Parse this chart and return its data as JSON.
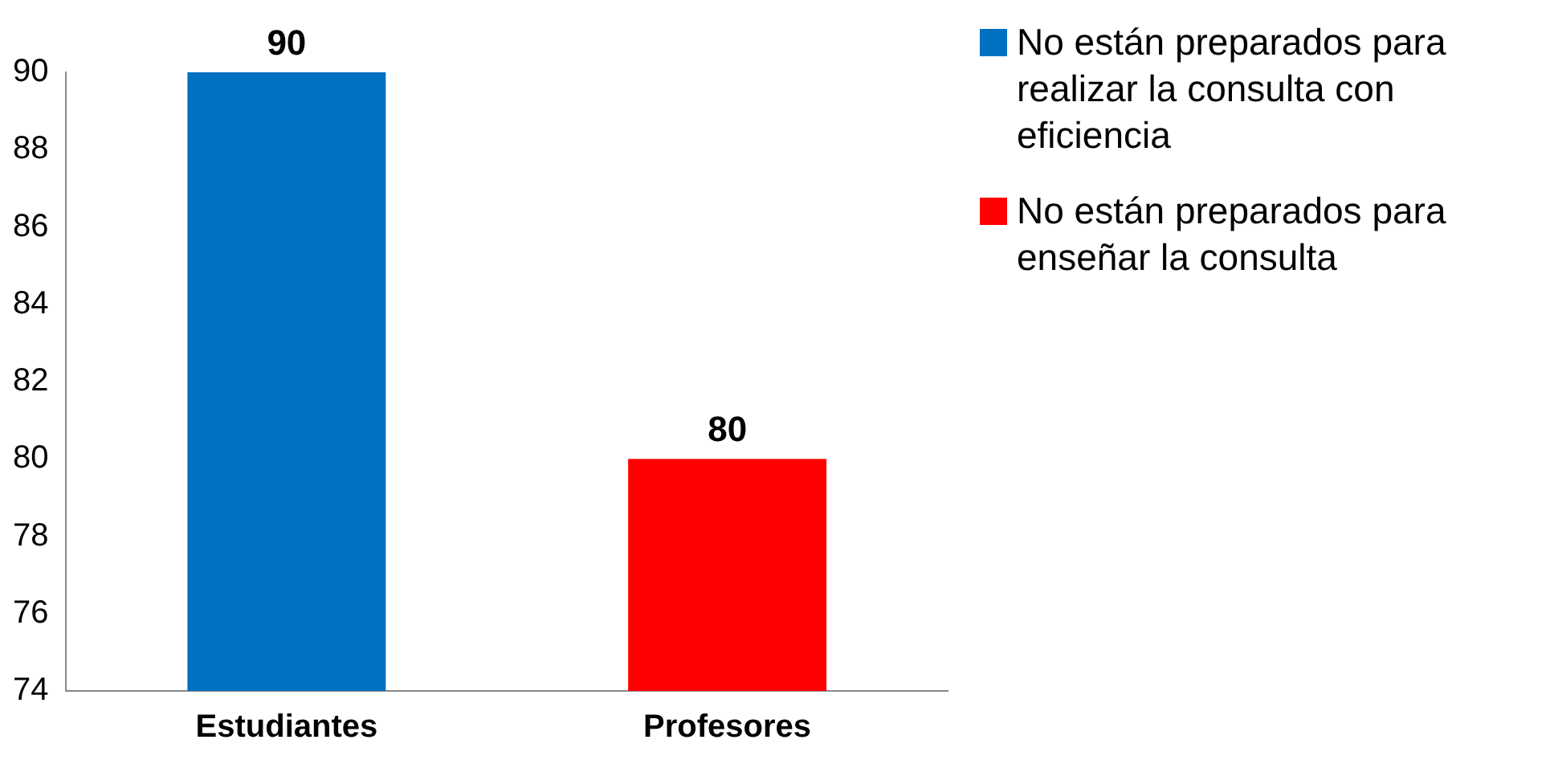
{
  "chart_data": {
    "type": "bar",
    "categories": [
      "Estudiantes",
      "Profesores"
    ],
    "series": [
      {
        "name": "No están preparados para realizar la consulta con eficiencia",
        "color": "#0070c0",
        "values": [
          90,
          null
        ]
      },
      {
        "name": "No están preparados para enseñar la consulta",
        "color": "#ff0000",
        "values": [
          null,
          80
        ]
      }
    ],
    "ylim": [
      74,
      90
    ],
    "yticks": [
      74,
      76,
      78,
      80,
      82,
      84,
      86,
      88,
      90
    ],
    "grid": false,
    "legend": "right",
    "data_labels": true
  }
}
